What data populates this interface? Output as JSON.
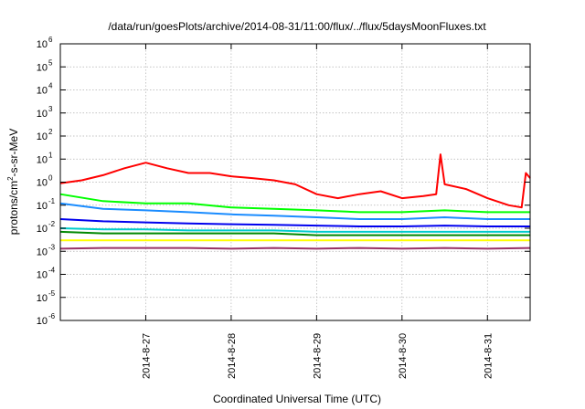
{
  "chart_data": {
    "type": "line",
    "title": "/data/run/goesPlots/archive/2014-08-31/11:00/flux/../flux/5daysMoonFluxes.txt",
    "xlabel": "Coordinated Universal Time (UTC)",
    "ylabel_parts": [
      "protons/cm",
      "2",
      "-s-sr-MeV"
    ],
    "y_scale": "log",
    "ylim": [
      1e-06,
      1000000.0
    ],
    "y_ticks": [
      {
        "base": "10",
        "exp": "-6",
        "value": 1e-06
      },
      {
        "base": "10",
        "exp": "-5",
        "value": 1e-05
      },
      {
        "base": "10",
        "exp": "-4",
        "value": 0.0001
      },
      {
        "base": "10",
        "exp": "-3",
        "value": 0.001
      },
      {
        "base": "10",
        "exp": "-2",
        "value": 0.01
      },
      {
        "base": "10",
        "exp": "-1",
        "value": 0.1
      },
      {
        "base": "10",
        "exp": "0",
        "value": 1
      },
      {
        "base": "10",
        "exp": "1",
        "value": 10
      },
      {
        "base": "10",
        "exp": "2",
        "value": 100
      },
      {
        "base": "10",
        "exp": "3",
        "value": 1000
      },
      {
        "base": "10",
        "exp": "4",
        "value": 10000
      },
      {
        "base": "10",
        "exp": "5",
        "value": 100000
      },
      {
        "base": "10",
        "exp": "6",
        "value": 1000000
      }
    ],
    "xlim": [
      "2014-08-26 00:00",
      "2014-08-31 12:00"
    ],
    "x_ticks": [
      {
        "label": "2014-8-27",
        "day": 1
      },
      {
        "label": "2014-8-28",
        "day": 2
      },
      {
        "label": "2014-8-29",
        "day": 3
      },
      {
        "label": "2014-8-30",
        "day": 4
      },
      {
        "label": "2014-8-31",
        "day": 5
      }
    ],
    "x_range_days": [
      0,
      5.5
    ],
    "grid": true,
    "legend": "none",
    "series": [
      {
        "color": "#ff0000",
        "x_days": [
          0,
          0.25,
          0.5,
          0.75,
          1.0,
          1.25,
          1.5,
          1.75,
          2.0,
          2.25,
          2.5,
          2.75,
          3.0,
          3.25,
          3.5,
          3.75,
          4.0,
          4.25,
          4.4,
          4.45,
          4.5,
          4.75,
          5.0,
          5.25,
          5.4,
          5.45,
          5.5
        ],
        "values": [
          0.9,
          1.2,
          2.0,
          4.0,
          7.0,
          4.0,
          2.5,
          2.5,
          1.8,
          1.5,
          1.2,
          0.8,
          0.3,
          0.2,
          0.3,
          0.4,
          0.2,
          0.25,
          0.3,
          16,
          0.8,
          0.5,
          0.2,
          0.1,
          0.08,
          2.5,
          1.5
        ]
      },
      {
        "color": "#00ff00",
        "x_days": [
          0,
          0.5,
          1.0,
          1.5,
          2.0,
          2.5,
          3.0,
          3.5,
          4.0,
          4.5,
          5.0,
          5.5
        ],
        "values": [
          0.3,
          0.15,
          0.12,
          0.12,
          0.08,
          0.07,
          0.06,
          0.05,
          0.05,
          0.06,
          0.05,
          0.05
        ]
      },
      {
        "color": "#1a8cff",
        "x_days": [
          0,
          0.5,
          1.0,
          1.5,
          2.0,
          2.5,
          3.0,
          3.5,
          4.0,
          4.5,
          5.0,
          5.5
        ],
        "values": [
          0.12,
          0.07,
          0.06,
          0.05,
          0.04,
          0.035,
          0.03,
          0.025,
          0.025,
          0.03,
          0.025,
          0.025
        ]
      },
      {
        "color": "#0000ee",
        "x_days": [
          0,
          0.5,
          1.0,
          1.5,
          2.0,
          2.5,
          3.0,
          3.5,
          4.0,
          4.5,
          5.0,
          5.5
        ],
        "values": [
          0.025,
          0.02,
          0.018,
          0.016,
          0.015,
          0.014,
          0.013,
          0.012,
          0.012,
          0.013,
          0.012,
          0.012
        ]
      },
      {
        "color": "#00cccc",
        "x_days": [
          0,
          0.5,
          1.0,
          1.5,
          2.0,
          2.5,
          3.0,
          3.5,
          4.0,
          4.5,
          5.0,
          5.5
        ],
        "values": [
          0.01,
          0.009,
          0.009,
          0.008,
          0.008,
          0.008,
          0.007,
          0.007,
          0.007,
          0.007,
          0.007,
          0.007
        ]
      },
      {
        "color": "#008800",
        "x_days": [
          0,
          0.5,
          1.0,
          1.5,
          2.0,
          2.5,
          3.0,
          3.5,
          4.0,
          4.5,
          5.0,
          5.5
        ],
        "values": [
          0.007,
          0.006,
          0.006,
          0.006,
          0.006,
          0.006,
          0.005,
          0.005,
          0.005,
          0.005,
          0.005,
          0.005
        ]
      },
      {
        "color": "#ffff00",
        "x_days": [
          0,
          0.5,
          1.0,
          1.5,
          2.0,
          2.5,
          3.0,
          3.5,
          4.0,
          4.5,
          5.0,
          5.5
        ],
        "values": [
          0.003,
          0.003,
          0.003,
          0.003,
          0.003,
          0.003,
          0.003,
          0.003,
          0.003,
          0.003,
          0.003,
          0.003
        ]
      },
      {
        "color": "#993366",
        "x_days": [
          0,
          0.5,
          1.0,
          1.5,
          2.0,
          2.5,
          3.0,
          3.5,
          4.0,
          4.5,
          5.0,
          5.5
        ],
        "values": [
          0.0013,
          0.0014,
          0.0014,
          0.0014,
          0.0013,
          0.0014,
          0.0013,
          0.0014,
          0.0013,
          0.0014,
          0.0013,
          0.0014
        ]
      }
    ]
  }
}
